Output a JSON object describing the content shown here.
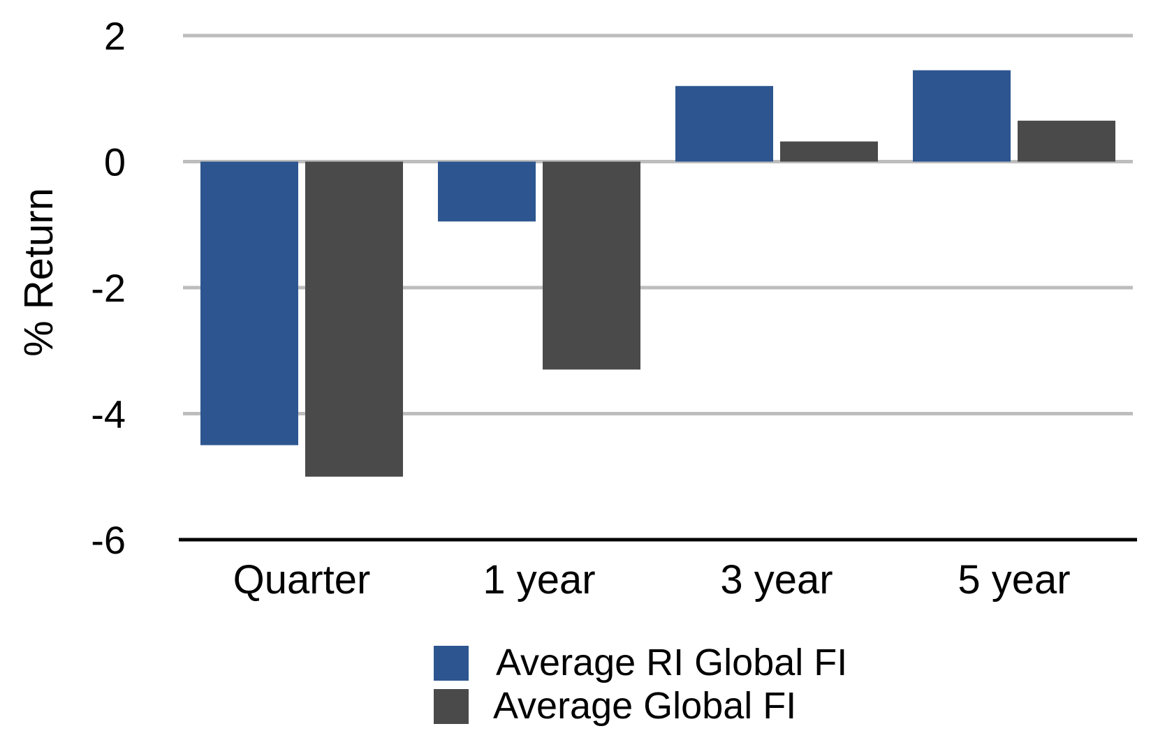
{
  "chart_data": {
    "type": "bar",
    "title": "",
    "xlabel": "",
    "ylabel": "% Return",
    "ylim": [
      -6,
      2
    ],
    "yticks": [
      2,
      0,
      -2,
      -4,
      -6
    ],
    "categories": [
      "Quarter",
      "1 year",
      "3 year",
      "5 year"
    ],
    "series": [
      {
        "name": "Average RI Global FI",
        "color": "#2d5690",
        "values": [
          -4.5,
          -0.95,
          1.2,
          1.45
        ]
      },
      {
        "name": "Average Global FI",
        "color": "#4a4a4a",
        "values": [
          -5.0,
          -3.3,
          0.32,
          0.65
        ]
      }
    ],
    "grid": true,
    "grid_color": "#bdbdbd",
    "legend_position": "bottom-center"
  }
}
